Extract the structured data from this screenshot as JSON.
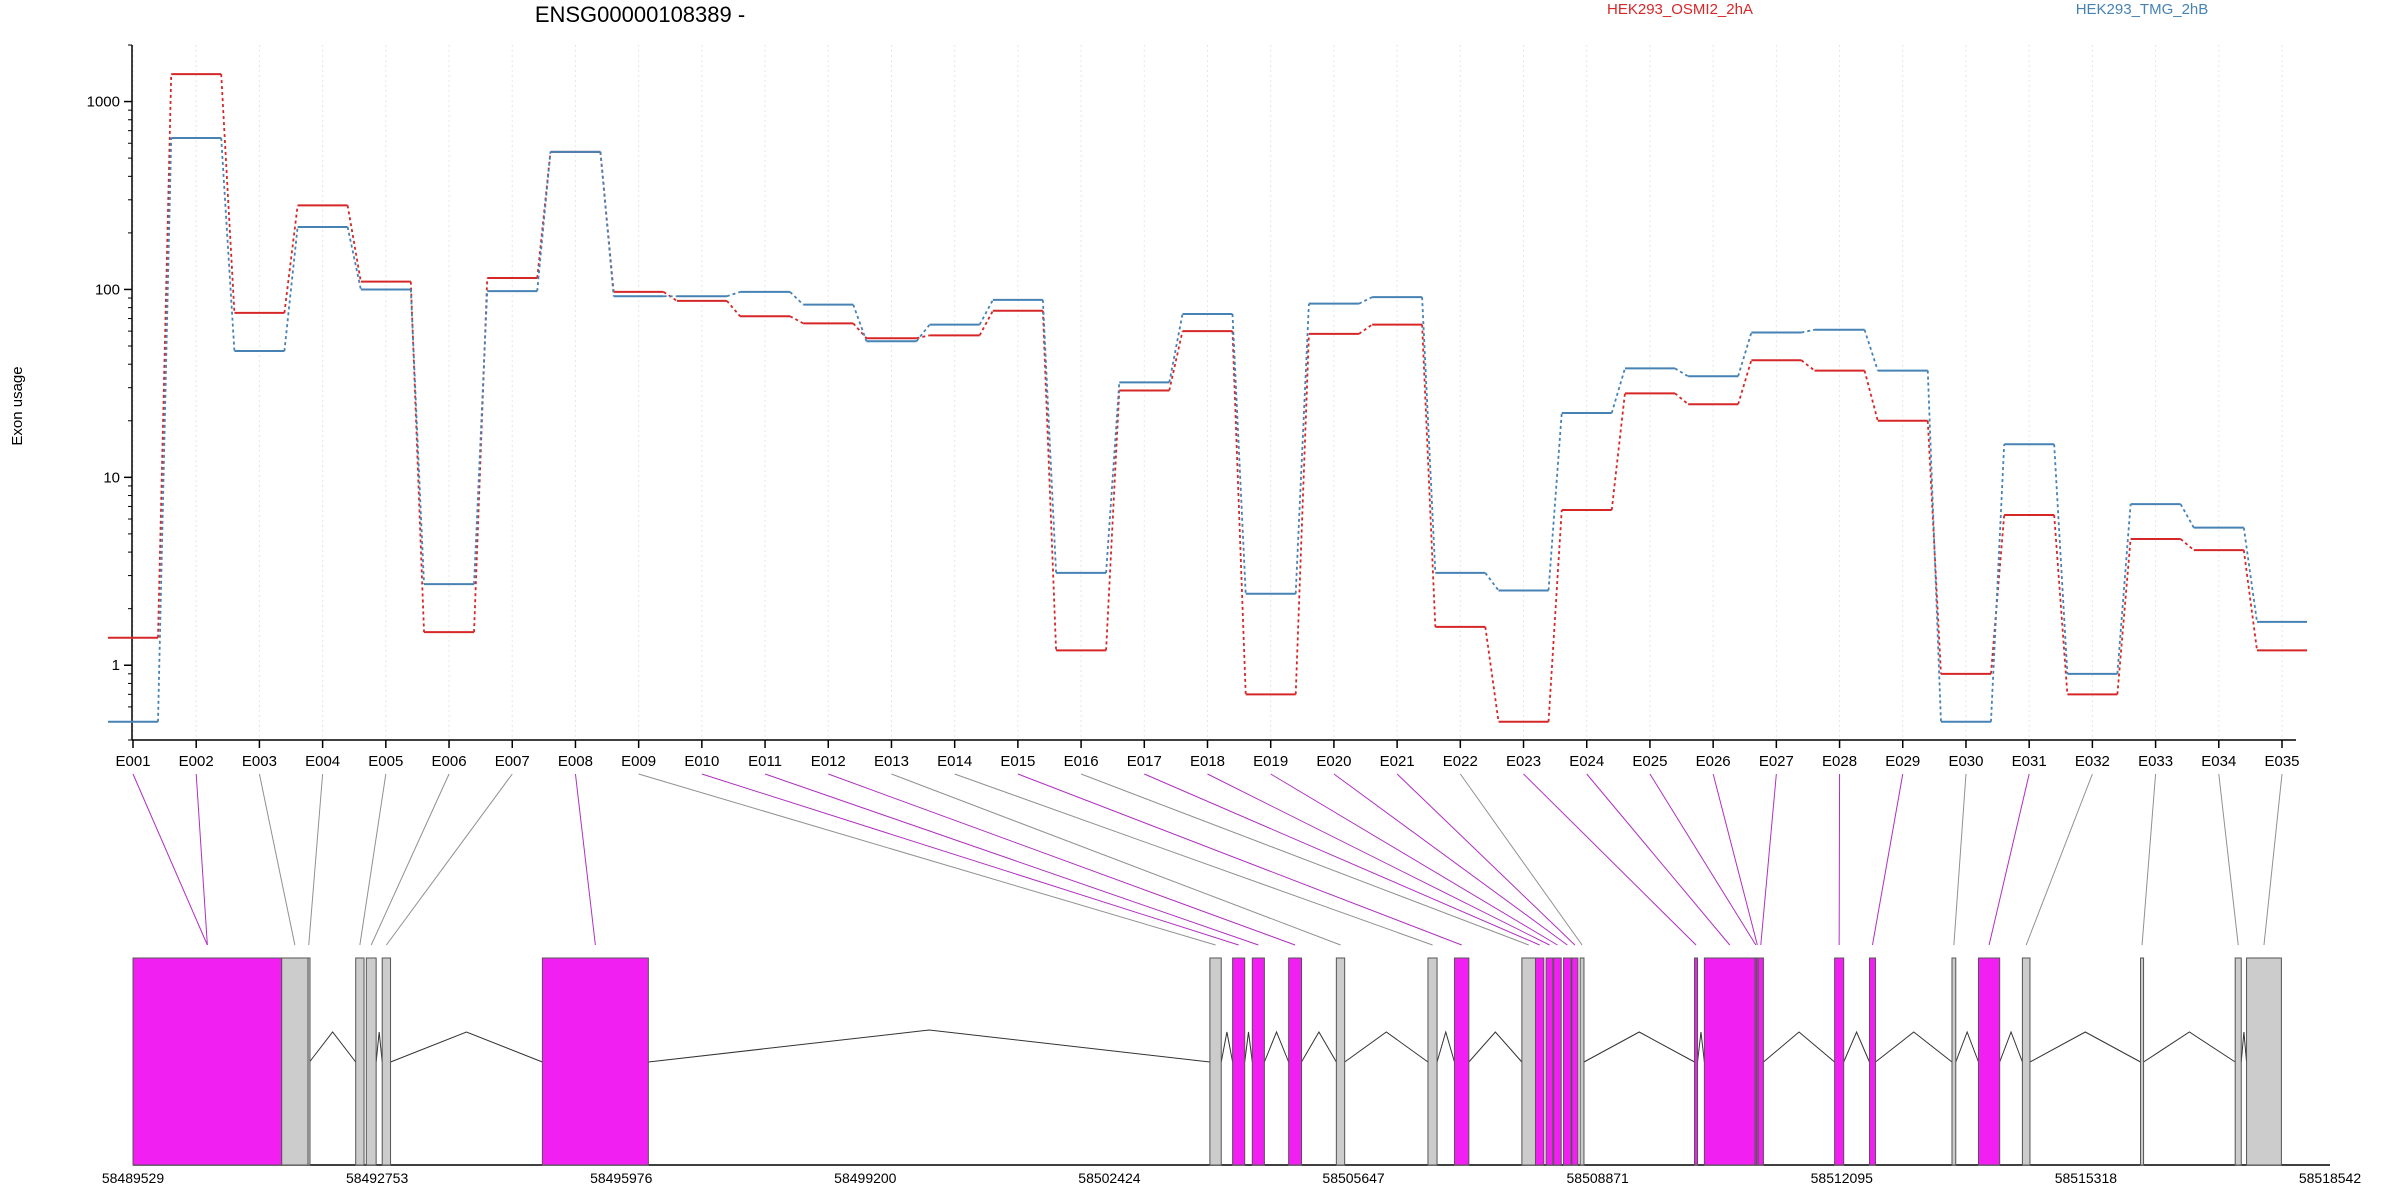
{
  "chart_data": {
    "type": "line",
    "title": "ENSG00000108389 -",
    "xlabel": "",
    "ylabel": "Exon usage",
    "y_scale": "log",
    "ylim": [
      0.4,
      2000
    ],
    "yticks": [
      1,
      10,
      100,
      1000
    ],
    "ytick_labels": [
      "1",
      "10",
      "100",
      "1000"
    ],
    "grid": "vertical dotted",
    "legend_placement": "top",
    "categories": [
      "E001",
      "E002",
      "E003",
      "E004",
      "E005",
      "E006",
      "E007",
      "E008",
      "E009",
      "E010",
      "E011",
      "E012",
      "E013",
      "E014",
      "E015",
      "E016",
      "E017",
      "E018",
      "E019",
      "E020",
      "E021",
      "E022",
      "E023",
      "E024",
      "E025",
      "E026",
      "E027",
      "E028",
      "E029",
      "E030",
      "E031",
      "E032",
      "E033",
      "E034",
      "E035"
    ],
    "series": [
      {
        "name": "HEK293_OSMI2_2hA",
        "color": "#d62728",
        "values": [
          1.4,
          1400,
          75,
          280,
          110,
          1.5,
          115,
          540,
          97,
          87,
          72,
          66,
          55,
          57,
          77,
          1.2,
          29,
          60,
          0.7,
          58,
          65,
          1.6,
          0.5,
          6.7,
          28,
          24.5,
          42,
          37,
          20,
          0.9,
          6.3,
          0.7,
          4.7,
          4.1,
          1.2
        ]
      },
      {
        "name": "HEK293_TMG_2hB",
        "color": "#4682b4",
        "values": [
          0.5,
          640,
          47,
          215,
          100,
          2.7,
          98,
          540,
          92,
          92,
          97,
          83,
          53,
          65,
          88,
          3.1,
          32,
          74,
          2.4,
          84,
          91,
          3.1,
          2.5,
          22,
          38,
          34.5,
          59,
          61,
          37,
          0.5,
          15,
          0.9,
          7.2,
          5.4,
          1.7
        ]
      }
    ],
    "gene_model": {
      "coordinate_labels": [
        "58489529",
        "58492753",
        "58495976",
        "58499200",
        "58502424",
        "58505647",
        "58508871",
        "58512095",
        "58515318",
        "58518542"
      ],
      "highlight_color": "#f21ff2",
      "plain_color": "#cccccc",
      "exons": [
        {
          "id": "E001",
          "start": 58489529,
          "end": 58491493,
          "highlighted": true
        },
        {
          "id": "E002",
          "start": 58489529,
          "end": 58491493,
          "highlighted": true
        },
        {
          "id": "E003",
          "start": 58491493,
          "end": 58491840,
          "highlighted": false
        },
        {
          "id": "E004",
          "start": 58491840,
          "end": 58491860,
          "highlighted": false
        },
        {
          "id": "E005",
          "start": 58492470,
          "end": 58492580,
          "highlighted": false
        },
        {
          "id": "E006",
          "start": 58492610,
          "end": 58492740,
          "highlighted": false
        },
        {
          "id": "E007",
          "start": 58492820,
          "end": 58492930,
          "highlighted": false
        },
        {
          "id": "E008",
          "start": 58494935,
          "end": 58496335,
          "highlighted": true
        },
        {
          "id": "E009",
          "start": 58503750,
          "end": 58503900,
          "highlighted": false
        },
        {
          "id": "E010",
          "start": 58504050,
          "end": 58504210,
          "highlighted": true
        },
        {
          "id": "E011",
          "start": 58504310,
          "end": 58504470,
          "highlighted": true
        },
        {
          "id": "E012",
          "start": 58504790,
          "end": 58504960,
          "highlighted": true
        },
        {
          "id": "E013",
          "start": 58505420,
          "end": 58505530,
          "highlighted": false
        },
        {
          "id": "E014",
          "start": 58506630,
          "end": 58506750,
          "highlighted": false
        },
        {
          "id": "E015",
          "start": 58506980,
          "end": 58507170,
          "highlighted": true
        },
        {
          "id": "E016",
          "start": 58507870,
          "end": 58508050,
          "highlighted": false
        },
        {
          "id": "E017",
          "start": 58508050,
          "end": 58508160,
          "highlighted": true
        },
        {
          "id": "E018",
          "start": 58508190,
          "end": 58508280,
          "highlighted": true
        },
        {
          "id": "E019",
          "start": 58508290,
          "end": 58508390,
          "highlighted": true
        },
        {
          "id": "E020",
          "start": 58508420,
          "end": 58508520,
          "highlighted": true
        },
        {
          "id": "E021",
          "start": 58508530,
          "end": 58508610,
          "highlighted": true
        },
        {
          "id": "E022",
          "start": 58508640,
          "end": 58508690,
          "highlighted": false
        },
        {
          "id": "E023",
          "start": 58510150,
          "end": 58510190,
          "highlighted": true
        },
        {
          "id": "E024",
          "start": 58510280,
          "end": 58510950,
          "highlighted": true
        },
        {
          "id": "E025",
          "start": 58510950,
          "end": 58510970,
          "highlighted": true
        },
        {
          "id": "E026",
          "start": 58510970,
          "end": 58510990,
          "highlighted": true
        },
        {
          "id": "E027",
          "start": 58510990,
          "end": 58511060,
          "highlighted": true
        },
        {
          "id": "E028",
          "start": 58512000,
          "end": 58512120,
          "highlighted": true
        },
        {
          "id": "E029",
          "start": 58512460,
          "end": 58512540,
          "highlighted": true
        },
        {
          "id": "E030",
          "start": 58513550,
          "end": 58513600,
          "highlighted": false
        },
        {
          "id": "E031",
          "start": 58513900,
          "end": 58514180,
          "highlighted": true
        },
        {
          "id": "E032",
          "start": 58514480,
          "end": 58514580,
          "highlighted": false
        },
        {
          "id": "E033",
          "start": 58516040,
          "end": 58516080,
          "highlighted": false
        },
        {
          "id": "E034",
          "start": 58517290,
          "end": 58517370,
          "highlighted": false
        },
        {
          "id": "E035",
          "start": 58517440,
          "end": 58517900,
          "highlighted": false
        }
      ]
    }
  }
}
